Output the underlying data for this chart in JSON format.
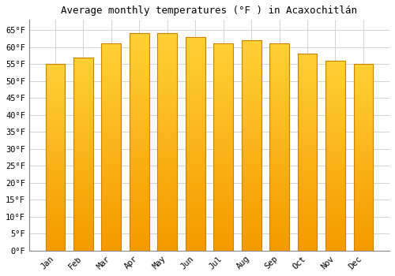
{
  "title": "Average monthly temperatures (°F ) in Acaxochitlán",
  "months": [
    "Jan",
    "Feb",
    "Mar",
    "Apr",
    "May",
    "Jun",
    "Jul",
    "Aug",
    "Sep",
    "Oct",
    "Nov",
    "Dec"
  ],
  "values": [
    55,
    57,
    61,
    64,
    64,
    63,
    61,
    62,
    61,
    58,
    56,
    55
  ],
  "bar_color": "#FFA500",
  "bar_edge_color": "#CC8000",
  "background_color": "#ffffff",
  "grid_color": "#cccccc",
  "ylim": [
    0,
    68
  ],
  "yticks": [
    0,
    5,
    10,
    15,
    20,
    25,
    30,
    35,
    40,
    45,
    50,
    55,
    60,
    65
  ],
  "title_fontsize": 9,
  "tick_fontsize": 7.5,
  "font_family": "monospace"
}
